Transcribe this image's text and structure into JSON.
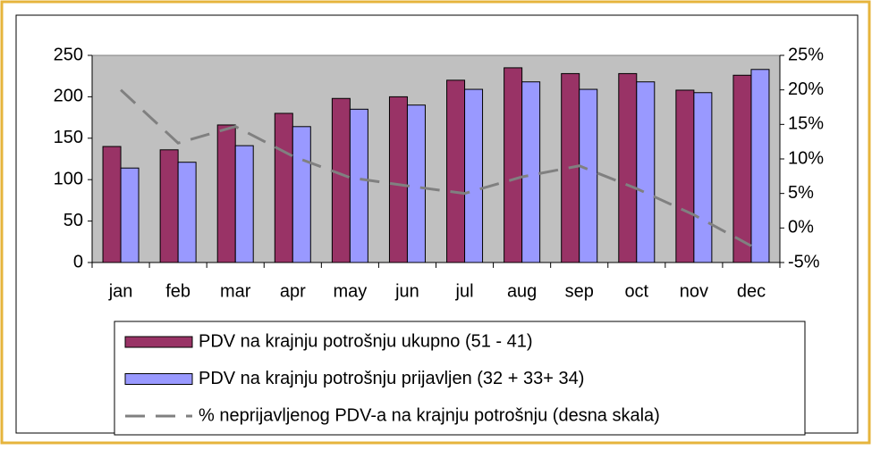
{
  "chart_data": {
    "type": "bar_line",
    "categories": [
      "jan",
      "feb",
      "mar",
      "apr",
      "may",
      "jun",
      "jul",
      "aug",
      "sep",
      "oct",
      "nov",
      "dec"
    ],
    "series": [
      {
        "name": "PDV na krajnju potrošnju ukupno (51 - 41)",
        "type": "bar",
        "color": "#993366",
        "values": [
          140,
          136,
          166,
          180,
          198,
          200,
          220,
          235,
          228,
          228,
          208,
          226
        ]
      },
      {
        "name": "PDV na krajnju potrošnju prijavljen (32 + 33+ 34)",
        "type": "bar",
        "color": "#9999ff",
        "values": [
          114,
          121,
          141,
          164,
          185,
          190,
          209,
          218,
          209,
          218,
          205,
          233
        ]
      },
      {
        "name": "% neprijavljenog PDV-a na krajnju potrošnju (desna skala)",
        "type": "line",
        "axis": "y2",
        "color": "#808080",
        "dashed": true,
        "values": [
          20,
          12.3,
          14.7,
          10.4,
          7.3,
          6.1,
          5,
          7.4,
          9,
          5.7,
          1.9,
          -2.6
        ]
      }
    ],
    "ylim": [
      0,
      250
    ],
    "yticks": [
      0,
      50,
      100,
      150,
      200,
      250
    ],
    "y2lim": [
      -5,
      25
    ],
    "y2ticks": [
      {
        "value": -5,
        "label": "-5%"
      },
      {
        "value": 0,
        "label": "0%"
      },
      {
        "value": 5,
        "label": "5%"
      },
      {
        "value": 10,
        "label": "10%"
      },
      {
        "value": 15,
        "label": "15%"
      },
      {
        "value": 20,
        "label": "20%"
      },
      {
        "value": 25,
        "label": "25%"
      }
    ],
    "plot_background": "#c0c0c0",
    "legend": "bottom"
  }
}
